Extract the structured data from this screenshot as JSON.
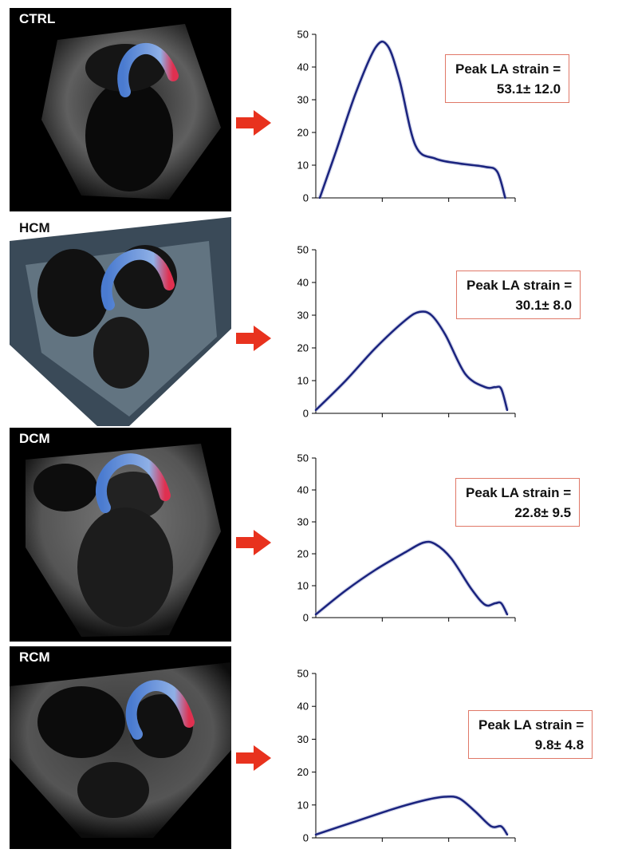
{
  "colors": {
    "curve": "#1a237e",
    "arrow": "#e8321e",
    "callout_border": "#e07868"
  },
  "panels": [
    {
      "label": "CTRL",
      "callout_line1": "Peak LA strain =",
      "callout_line2": "53.1± 12.0"
    },
    {
      "label": "HCM",
      "callout_line1": "Peak LA strain =",
      "callout_line2": "30.1± 8.0"
    },
    {
      "label": "DCM",
      "callout_line1": "Peak LA strain =",
      "callout_line2": "22.8± 9.5"
    },
    {
      "label": "RCM",
      "callout_line1": "Peak LA strain =",
      "callout_line2": "9.8± 4.8"
    }
  ],
  "chart_data": [
    {
      "type": "line",
      "title": "",
      "xlabel": "",
      "ylabel": "",
      "ylim": [
        0,
        50
      ],
      "yticks": [
        "0",
        "10",
        "20",
        "30",
        "40",
        "50"
      ],
      "grid": false,
      "series": [
        {
          "x": [
            0.02,
            0.1,
            0.2,
            0.3,
            0.36,
            0.42,
            0.5,
            0.6,
            0.72,
            0.85,
            0.91,
            0.95
          ],
          "y": [
            0,
            14,
            32,
            46,
            46.5,
            36,
            16,
            12,
            10.5,
            9.5,
            8,
            0
          ]
        }
      ]
    },
    {
      "type": "line",
      "title": "",
      "xlabel": "",
      "ylabel": "",
      "ylim": [
        0,
        50
      ],
      "yticks": [
        "0",
        "10",
        "20",
        "30",
        "40",
        "50"
      ],
      "grid": false,
      "series": [
        {
          "x": [
            0.0,
            0.15,
            0.3,
            0.45,
            0.52,
            0.58,
            0.65,
            0.75,
            0.85,
            0.9,
            0.93,
            0.96
          ],
          "y": [
            1,
            10,
            20,
            28.5,
            31,
            30,
            24,
            12,
            8,
            8,
            7.5,
            1
          ]
        }
      ]
    },
    {
      "type": "line",
      "title": "",
      "xlabel": "",
      "ylabel": "",
      "ylim": [
        0,
        50
      ],
      "yticks": [
        "0",
        "10",
        "20",
        "30",
        "40",
        "50"
      ],
      "grid": false,
      "series": [
        {
          "x": [
            0.0,
            0.15,
            0.3,
            0.45,
            0.54,
            0.6,
            0.68,
            0.78,
            0.85,
            0.9,
            0.93,
            0.96
          ],
          "y": [
            1,
            8.5,
            15,
            20.5,
            23.5,
            23,
            18.5,
            9,
            4,
            4.5,
            4.5,
            1
          ]
        }
      ]
    },
    {
      "type": "line",
      "title": "",
      "xlabel": "",
      "ylabel": "",
      "ylim": [
        0,
        50
      ],
      "yticks": [
        "0",
        "10",
        "20",
        "30",
        "40",
        "50"
      ],
      "grid": false,
      "series": [
        {
          "x": [
            0.0,
            0.2,
            0.4,
            0.55,
            0.65,
            0.72,
            0.8,
            0.88,
            0.93,
            0.96
          ],
          "y": [
            1,
            5,
            9,
            11.5,
            12.5,
            12,
            8,
            3.5,
            3.5,
            1
          ]
        }
      ]
    }
  ]
}
